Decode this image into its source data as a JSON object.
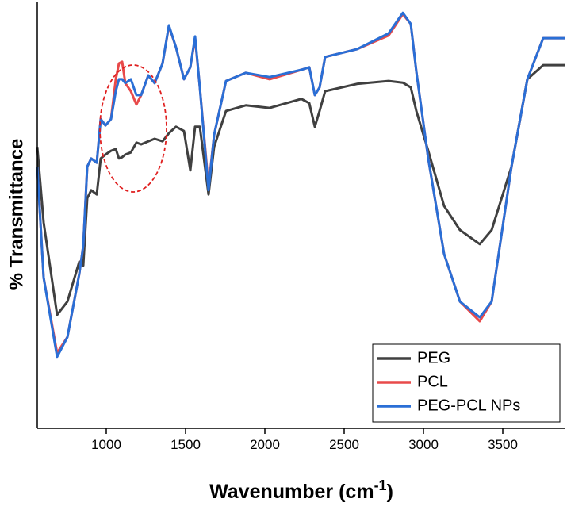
{
  "chart_data": {
    "type": "line",
    "x_label": "Wavenumber (cm",
    "x_label_sup": "-1",
    "x_label_end": ")",
    "y_label": "% Transmittance",
    "x": [
      565,
      605,
      690,
      755,
      830,
      855,
      880,
      905,
      940,
      965,
      995,
      1030,
      1060,
      1080,
      1100,
      1120,
      1155,
      1190,
      1220,
      1265,
      1305,
      1355,
      1395,
      1440,
      1490,
      1530,
      1560,
      1590,
      1645,
      1680,
      1755,
      1880,
      2030,
      2230,
      2280,
      2315,
      2345,
      2380,
      2580,
      2780,
      2870,
      2920,
      2955,
      3030,
      3130,
      3230,
      3355,
      3430,
      3555,
      3655,
      3755,
      3890
    ],
    "series": [
      {
        "name": "PEG",
        "color": "#404040",
        "values": [
          65.7,
          48.1,
          26.5,
          29.6,
          38.9,
          38.0,
          53.7,
          55.6,
          54.6,
          63.0,
          63.9,
          64.8,
          65.2,
          63.0,
          63.3,
          63.9,
          64.4,
          66.7,
          66.3,
          67.0,
          67.6,
          67.0,
          68.9,
          70.4,
          69.4,
          60.2,
          70.4,
          70.4,
          54.6,
          65.7,
          74.1,
          75.4,
          74.8,
          76.9,
          75.9,
          70.4,
          74.1,
          78.7,
          80.4,
          81.1,
          80.7,
          79.6,
          74.1,
          64.8,
          51.9,
          46.3,
          43.0,
          46.3,
          61.1,
          81.5,
          84.8,
          84.8
        ]
      },
      {
        "name": "PCL",
        "color": "#e84a4a",
        "values": [
          61.1,
          35.2,
          17.6,
          21.3,
          36.1,
          42.6,
          61.1,
          63.0,
          62.0,
          72.2,
          70.7,
          72.2,
          81.5,
          85.2,
          85.6,
          80.6,
          78.7,
          75.6,
          77.8,
          82.4,
          80.6,
          85.2,
          93.9,
          88.9,
          81.5,
          84.3,
          91.1,
          79.6,
          56.5,
          68.5,
          81.1,
          83.0,
          81.5,
          83.7,
          84.3,
          77.8,
          79.6,
          86.7,
          88.5,
          91.7,
          96.7,
          94.4,
          83.3,
          63.0,
          40.7,
          29.6,
          25.0,
          29.6,
          61.1,
          81.5,
          91.1,
          91.1
        ]
      },
      {
        "name": "PEG-PCL NPs",
        "color": "#2a6fd6",
        "values": [
          61.1,
          35.2,
          16.7,
          21.3,
          36.1,
          42.6,
          61.1,
          63.0,
          62.0,
          72.2,
          70.7,
          72.2,
          78.7,
          81.5,
          81.5,
          80.6,
          81.5,
          77.8,
          77.8,
          82.4,
          80.6,
          85.2,
          94.1,
          88.9,
          81.5,
          84.3,
          91.5,
          79.6,
          55.6,
          68.5,
          81.1,
          83.0,
          82.0,
          83.7,
          84.3,
          77.8,
          79.6,
          86.7,
          88.5,
          92.2,
          97.0,
          94.4,
          83.3,
          63.0,
          40.7,
          29.6,
          25.9,
          29.6,
          61.1,
          81.5,
          91.1,
          91.1
        ]
      }
    ],
    "xlim": [
      565,
      3890
    ],
    "xticks": [
      1000,
      1500,
      2000,
      2500,
      3000,
      3500
    ],
    "ylim": [
      0,
      100
    ],
    "grid": false,
    "legend": "lower right"
  }
}
